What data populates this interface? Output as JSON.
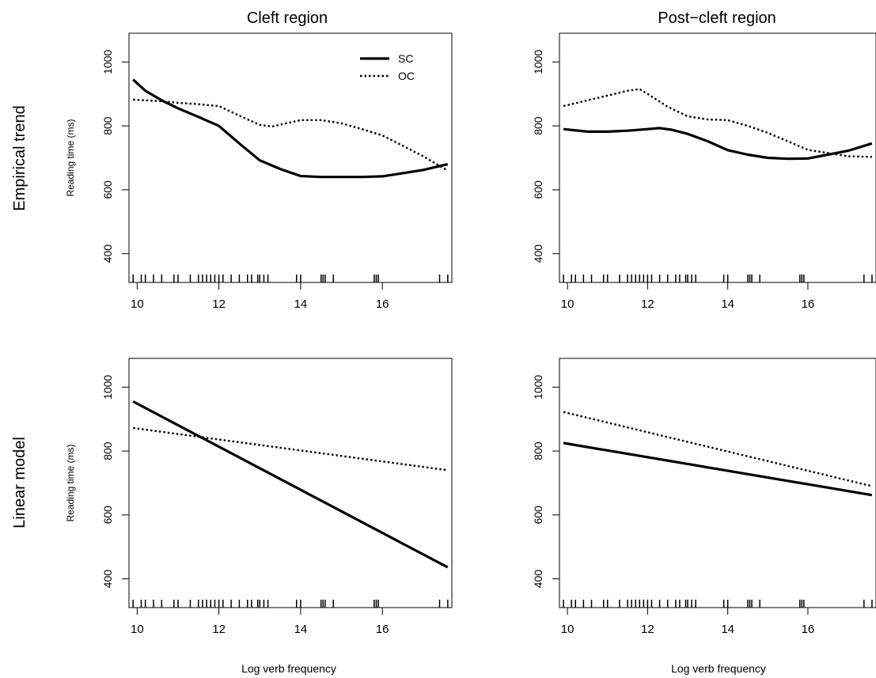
{
  "figure": {
    "col_titles": [
      "Cleft region",
      "Post−cleft region"
    ],
    "row_titles": [
      "Empirical trend",
      "Linear model"
    ],
    "ylabel": "Reading time (ms)",
    "xlabel": "Log verb frequency",
    "legend": [
      {
        "label": "SC",
        "style": "solid"
      },
      {
        "label": "OC",
        "style": "dotted"
      }
    ]
  },
  "chart_data": [
    {
      "type": "line",
      "title": "Cleft region",
      "row": "Empirical trend",
      "xlim": [
        9.8,
        17.7
      ],
      "ylim": [
        310,
        1090
      ],
      "xticks": [
        10,
        12,
        14,
        16
      ],
      "yticks": [
        400,
        600,
        800,
        1000
      ],
      "legend": "top-right",
      "series": [
        {
          "name": "SC",
          "style": "solid",
          "x": [
            9.9,
            10.2,
            10.6,
            11.0,
            11.5,
            12.0,
            12.5,
            13.0,
            13.5,
            14.0,
            14.5,
            15.0,
            15.5,
            16.0,
            16.5,
            17.0,
            17.6
          ],
          "y": [
            945,
            910,
            880,
            855,
            828,
            800,
            745,
            692,
            665,
            643,
            640,
            640,
            640,
            642,
            652,
            662,
            680
          ]
        },
        {
          "name": "OC",
          "style": "dotted",
          "x": [
            9.9,
            10.5,
            11.0,
            11.5,
            12.0,
            12.5,
            13.0,
            13.3,
            14.0,
            14.5,
            15.0,
            15.5,
            16.0,
            16.5,
            17.0,
            17.6
          ],
          "y": [
            882,
            878,
            872,
            868,
            862,
            832,
            803,
            798,
            818,
            818,
            808,
            790,
            770,
            738,
            705,
            660
          ]
        }
      ]
    },
    {
      "type": "line",
      "title": "Post−cleft region",
      "row": "Empirical trend",
      "xlim": [
        9.8,
        17.7
      ],
      "ylim": [
        310,
        1090
      ],
      "xticks": [
        10,
        12,
        14,
        16
      ],
      "yticks": [
        400,
        600,
        800,
        1000
      ],
      "series": [
        {
          "name": "SC",
          "style": "solid",
          "x": [
            9.9,
            10.5,
            11.0,
            11.5,
            12.0,
            12.3,
            12.6,
            13.0,
            13.5,
            14.0,
            14.5,
            15.0,
            15.5,
            16.0,
            16.5,
            17.0,
            17.6
          ],
          "y": [
            790,
            782,
            782,
            785,
            790,
            793,
            788,
            775,
            752,
            724,
            710,
            700,
            697,
            698,
            710,
            722,
            745
          ]
        },
        {
          "name": "OC",
          "style": "dotted",
          "x": [
            9.9,
            10.5,
            11.0,
            11.5,
            11.8,
            12.0,
            12.5,
            13.0,
            13.5,
            14.0,
            14.5,
            15.0,
            15.5,
            16.0,
            16.5,
            17.0,
            17.6
          ],
          "y": [
            862,
            880,
            895,
            910,
            915,
            900,
            860,
            830,
            820,
            818,
            800,
            778,
            752,
            725,
            715,
            705,
            703
          ]
        }
      ]
    },
    {
      "type": "line",
      "title": "",
      "row": "Linear model",
      "xlim": [
        9.8,
        17.7
      ],
      "ylim": [
        310,
        1090
      ],
      "xticks": [
        10,
        12,
        14,
        16
      ],
      "yticks": [
        400,
        600,
        800,
        1000
      ],
      "series": [
        {
          "name": "SC",
          "style": "solid",
          "x": [
            9.9,
            17.6
          ],
          "y": [
            955,
            436
          ]
        },
        {
          "name": "OC",
          "style": "dotted",
          "x": [
            9.9,
            17.6
          ],
          "y": [
            872,
            740
          ]
        }
      ]
    },
    {
      "type": "line",
      "title": "",
      "row": "Linear model",
      "xlim": [
        9.8,
        17.7
      ],
      "ylim": [
        310,
        1090
      ],
      "xticks": [
        10,
        12,
        14,
        16
      ],
      "yticks": [
        400,
        600,
        800,
        1000
      ],
      "series": [
        {
          "name": "SC",
          "style": "solid",
          "x": [
            9.9,
            17.6
          ],
          "y": [
            825,
            662
          ]
        },
        {
          "name": "OC",
          "style": "dotted",
          "x": [
            9.9,
            17.6
          ],
          "y": [
            922,
            690
          ]
        }
      ]
    }
  ],
  "rug_x": [
    9.9,
    10.1,
    10.2,
    10.4,
    10.6,
    10.9,
    11.0,
    11.3,
    11.5,
    11.6,
    11.7,
    11.8,
    11.9,
    12.0,
    12.1,
    12.3,
    12.5,
    12.7,
    12.8,
    12.95,
    13.0,
    13.1,
    13.2,
    13.9,
    14.0,
    14.5,
    14.55,
    14.6,
    14.8,
    15.8,
    15.85,
    15.9,
    17.4,
    17.6
  ]
}
